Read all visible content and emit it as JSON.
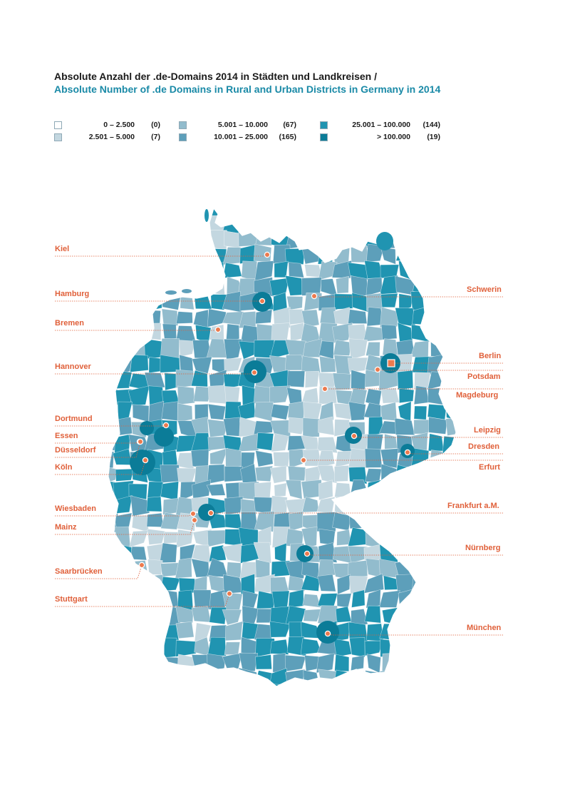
{
  "title": {
    "de": "Absolute Anzahl der .de-Domains 2014 in Städten und Landkreisen /",
    "en": "Absolute Number of .de Domains in Rural and Urban Districts in Germany in 2014"
  },
  "legend": [
    {
      "label": "0   –   2.500",
      "count": "(0)",
      "color": "#ffffff"
    },
    {
      "label": "2.501   –   5.000",
      "count": "(7)",
      "color": "#c3d7e0"
    },
    {
      "label": "5.001   –   10.000",
      "count": "(67)",
      "color": "#92bccd"
    },
    {
      "label": "10.001   –   25.000",
      "count": "(165)",
      "color": "#5d9fba"
    },
    {
      "label": "25.001   –   100.000",
      "count": "(144)",
      "color": "#2094b1"
    },
    {
      "label": ">   100.000",
      "count": "(19)",
      "color": "#0b7c98"
    }
  ],
  "colors": {
    "accent": "#e0603a",
    "title_en": "#1a8aa7",
    "dot_fill": "#ec7a4e",
    "dot_stroke": "#ffffff"
  },
  "cities": {
    "kiel": "Kiel",
    "hamburg": "Hamburg",
    "bremen": "Bremen",
    "hannover": "Hannover",
    "dortmund": "Dortmund",
    "essen": "Essen",
    "duesseldorf": "Düsseldorf",
    "koeln": "Köln",
    "wiesbaden": "Wiesbaden",
    "mainz": "Mainz",
    "saarbruecken": "Saarbrücken",
    "stuttgart": "Stuttgart",
    "schwerin": "Schwerin",
    "berlin": "Berlin",
    "potsdam": "Potsdam",
    "magdeburg": "Magdeburg",
    "leipzig": "Leipzig",
    "dresden": "Dresden",
    "erfurt": "Erfurt",
    "frankfurt": "Frankfurt a.M.",
    "nuernberg": "Nürnberg",
    "muenchen": "München"
  }
}
